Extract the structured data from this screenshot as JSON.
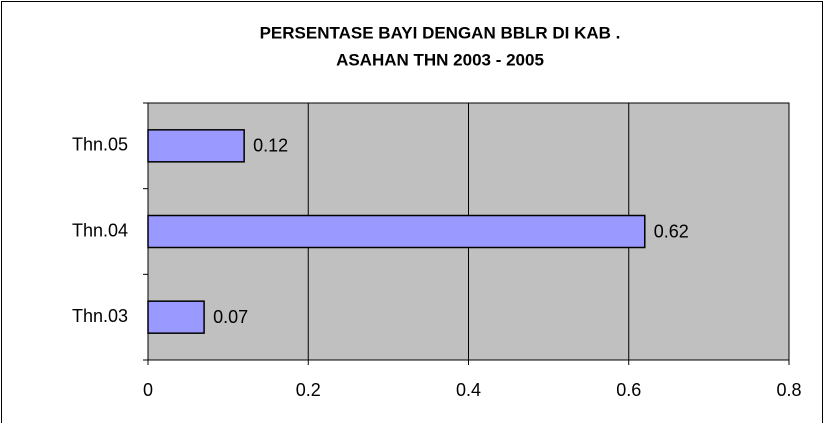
{
  "chart_data": {
    "type": "bar",
    "orientation": "horizontal",
    "title": [
      "PERSENTASE BAYI DENGAN BBLR DI KAB .",
      "ASAHAN THN 2003 - 2005"
    ],
    "categories": [
      "Thn.05",
      "Thn.04",
      "Thn.03"
    ],
    "values": [
      0.12,
      0.62,
      0.07
    ],
    "color": "#9999ff",
    "xlim": [
      0,
      0.8
    ],
    "xticks": [
      0,
      0.2,
      0.4,
      0.6,
      0.8
    ],
    "grid": true,
    "plot_background": "#c0c0c0"
  }
}
